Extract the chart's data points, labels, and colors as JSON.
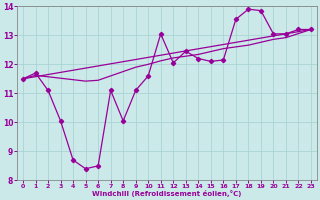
{
  "xlabel": "Windchill (Refroidissement éolien,°C)",
  "xlim": [
    -0.5,
    23.5
  ],
  "ylim": [
    8,
    14
  ],
  "xticks": [
    0,
    1,
    2,
    3,
    4,
    5,
    6,
    7,
    8,
    9,
    10,
    11,
    12,
    13,
    14,
    15,
    16,
    17,
    18,
    19,
    20,
    21,
    22,
    23
  ],
  "yticks": [
    8,
    9,
    10,
    11,
    12,
    13,
    14
  ],
  "bg_color": "#cce9e9",
  "line_color": "#990099",
  "grid_color": "#aad4d4",
  "line1_x": [
    0,
    1,
    2,
    3,
    4,
    5,
    6,
    7,
    8,
    9,
    10,
    11,
    12,
    13,
    14,
    15,
    16,
    17,
    18,
    19,
    20,
    21,
    22,
    23
  ],
  "line1_y": [
    11.5,
    11.7,
    11.1,
    10.05,
    8.7,
    8.4,
    8.5,
    11.1,
    10.05,
    11.1,
    11.6,
    13.05,
    12.05,
    12.45,
    12.2,
    12.1,
    12.15,
    13.55,
    13.9,
    13.85,
    13.05,
    13.05,
    13.2,
    13.2
  ],
  "line2_x": [
    0,
    23
  ],
  "line2_y": [
    11.5,
    13.2
  ],
  "line3_x": [
    0,
    1,
    2,
    3,
    4,
    5,
    6,
    7,
    8,
    9,
    10,
    11,
    12,
    13,
    14,
    15,
    16,
    17,
    18,
    19,
    20,
    21,
    22,
    23
  ],
  "line3_y": [
    11.5,
    11.62,
    11.57,
    11.52,
    11.47,
    11.42,
    11.45,
    11.6,
    11.75,
    11.9,
    12.0,
    12.12,
    12.22,
    12.28,
    12.34,
    12.44,
    12.54,
    12.6,
    12.66,
    12.76,
    12.86,
    12.92,
    13.06,
    13.2
  ]
}
